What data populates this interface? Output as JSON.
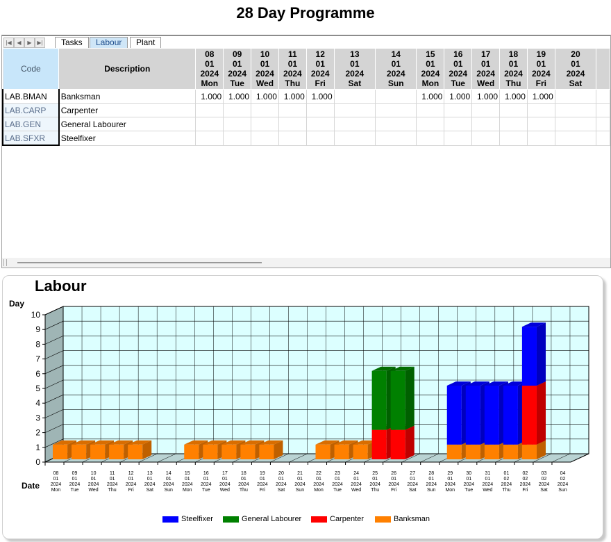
{
  "page_title": "28 Day Programme",
  "tabs": [
    {
      "label": "Tasks",
      "active": false
    },
    {
      "label": "Labour",
      "active": true
    },
    {
      "label": "Plant",
      "active": false
    }
  ],
  "grid": {
    "code_header": "Code",
    "desc_header": "Description",
    "columns": [
      {
        "d": "08",
        "m": "01",
        "y": "2024",
        "dow": "Mon"
      },
      {
        "d": "09",
        "m": "01",
        "y": "2024",
        "dow": "Tue"
      },
      {
        "d": "10",
        "m": "01",
        "y": "2024",
        "dow": "Wed"
      },
      {
        "d": "11",
        "m": "01",
        "y": "2024",
        "dow": "Thu"
      },
      {
        "d": "12",
        "m": "01",
        "y": "2024",
        "dow": "Fri"
      },
      {
        "d": "13",
        "m": "01",
        "y": "2024",
        "dow": "Sat"
      },
      {
        "d": "14",
        "m": "01",
        "y": "2024",
        "dow": "Sun"
      },
      {
        "d": "15",
        "m": "01",
        "y": "2024",
        "dow": "Mon"
      },
      {
        "d": "16",
        "m": "01",
        "y": "2024",
        "dow": "Tue"
      },
      {
        "d": "17",
        "m": "01",
        "y": "2024",
        "dow": "Wed"
      },
      {
        "d": "18",
        "m": "01",
        "y": "2024",
        "dow": "Thu"
      },
      {
        "d": "19",
        "m": "01",
        "y": "2024",
        "dow": "Fri"
      },
      {
        "d": "20",
        "m": "01",
        "y": "2024",
        "dow": "Sat"
      }
    ],
    "rows": [
      {
        "code": "LAB.BMAN",
        "desc": "Banksman",
        "values": [
          "1.000",
          "1.000",
          "1.000",
          "1.000",
          "1.000",
          "",
          "",
          "1.000",
          "1.000",
          "1.000",
          "1.000",
          "1.000",
          ""
        ]
      },
      {
        "code": "LAB.CARP",
        "desc": "Carpenter",
        "values": [
          "",
          "",
          "",
          "",
          "",
          "",
          "",
          "",
          "",
          "",
          "",
          "",
          ""
        ]
      },
      {
        "code": "LAB.GEN",
        "desc": "General Labourer",
        "values": [
          "",
          "",
          "",
          "",
          "",
          "",
          "",
          "",
          "",
          "",
          "",
          "",
          ""
        ]
      },
      {
        "code": "LAB.SFXR",
        "desc": "Steelfixer",
        "values": [
          "",
          "",
          "",
          "",
          "",
          "",
          "",
          "",
          "",
          "",
          "",
          "",
          ""
        ]
      }
    ]
  },
  "chart_data": {
    "type": "bar",
    "stacked": true,
    "three_d": true,
    "title": "Labour",
    "ylabel": "Day",
    "xlabel": "Date",
    "ylim": [
      0,
      10
    ],
    "yticks": [
      0,
      1,
      2,
      3,
      4,
      5,
      6,
      7,
      8,
      9,
      10
    ],
    "grid": true,
    "legend_position": "bottom",
    "categories": [
      {
        "d": "08",
        "m": "01",
        "y": "2024",
        "dow": "Mon"
      },
      {
        "d": "09",
        "m": "01",
        "y": "2024",
        "dow": "Tue"
      },
      {
        "d": "10",
        "m": "01",
        "y": "2024",
        "dow": "Wed"
      },
      {
        "d": "11",
        "m": "01",
        "y": "2024",
        "dow": "Thu"
      },
      {
        "d": "12",
        "m": "01",
        "y": "2024",
        "dow": "Fri"
      },
      {
        "d": "13",
        "m": "01",
        "y": "2024",
        "dow": "Sat"
      },
      {
        "d": "14",
        "m": "01",
        "y": "2024",
        "dow": "Sun"
      },
      {
        "d": "15",
        "m": "01",
        "y": "2024",
        "dow": "Mon"
      },
      {
        "d": "16",
        "m": "01",
        "y": "2024",
        "dow": "Tue"
      },
      {
        "d": "17",
        "m": "01",
        "y": "2024",
        "dow": "Wed"
      },
      {
        "d": "18",
        "m": "01",
        "y": "2024",
        "dow": "Thu"
      },
      {
        "d": "19",
        "m": "01",
        "y": "2024",
        "dow": "Fri"
      },
      {
        "d": "20",
        "m": "01",
        "y": "2024",
        "dow": "Sat"
      },
      {
        "d": "21",
        "m": "01",
        "y": "2024",
        "dow": "Sun"
      },
      {
        "d": "22",
        "m": "01",
        "y": "2024",
        "dow": "Mon"
      },
      {
        "d": "23",
        "m": "01",
        "y": "2024",
        "dow": "Tue"
      },
      {
        "d": "24",
        "m": "01",
        "y": "2024",
        "dow": "Wed"
      },
      {
        "d": "25",
        "m": "01",
        "y": "2024",
        "dow": "Thu"
      },
      {
        "d": "26",
        "m": "01",
        "y": "2024",
        "dow": "Fri"
      },
      {
        "d": "27",
        "m": "01",
        "y": "2024",
        "dow": "Sat"
      },
      {
        "d": "28",
        "m": "01",
        "y": "2024",
        "dow": "Sun"
      },
      {
        "d": "29",
        "m": "01",
        "y": "2024",
        "dow": "Mon"
      },
      {
        "d": "30",
        "m": "01",
        "y": "2024",
        "dow": "Tue"
      },
      {
        "d": "31",
        "m": "01",
        "y": "2024",
        "dow": "Wed"
      },
      {
        "d": "01",
        "m": "02",
        "y": "2024",
        "dow": "Thu"
      },
      {
        "d": "02",
        "m": "02",
        "y": "2024",
        "dow": "Fri"
      },
      {
        "d": "03",
        "m": "02",
        "y": "2024",
        "dow": "Sat"
      },
      {
        "d": "04",
        "m": "02",
        "y": "2024",
        "dow": "Sun"
      }
    ],
    "series": [
      {
        "name": "Banksman",
        "color": "#ff8000",
        "values": [
          1,
          1,
          1,
          1,
          1,
          0,
          0,
          1,
          1,
          1,
          1,
          1,
          0,
          0,
          1,
          1,
          1,
          0,
          0,
          0,
          0,
          1,
          1,
          1,
          1,
          1,
          0,
          0
        ]
      },
      {
        "name": "Carpenter",
        "color": "#ff0000",
        "values": [
          0,
          0,
          0,
          0,
          0,
          0,
          0,
          0,
          0,
          0,
          0,
          0,
          0,
          0,
          0,
          0,
          0,
          2,
          2,
          0,
          0,
          0,
          0,
          0,
          0,
          4,
          0,
          0
        ]
      },
      {
        "name": "General Labourer",
        "color": "#008000",
        "values": [
          0,
          0,
          0,
          0,
          0,
          0,
          0,
          0,
          0,
          0,
          0,
          0,
          0,
          0,
          0,
          0,
          0,
          4,
          4,
          0,
          0,
          0,
          0,
          0,
          0,
          0,
          0,
          0
        ]
      },
      {
        "name": "Steelfixer",
        "color": "#0000ff",
        "values": [
          0,
          0,
          0,
          0,
          0,
          0,
          0,
          0,
          0,
          0,
          0,
          0,
          0,
          0,
          0,
          0,
          0,
          0,
          0,
          0,
          0,
          4,
          4,
          4,
          4,
          4,
          0,
          0
        ]
      }
    ],
    "legend_order": [
      "Steelfixer",
      "General Labourer",
      "Carpenter",
      "Banksman"
    ]
  }
}
